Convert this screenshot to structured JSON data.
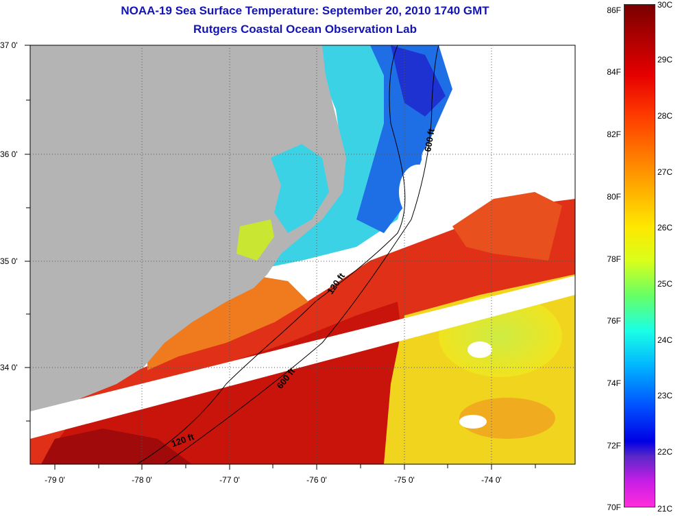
{
  "header": {
    "title": "NOAA-19 Sea Surface Temperature:  September 20, 2010 1740 GMT",
    "subtitle": "Rutgers Coastal Ocean Observation Lab"
  },
  "map": {
    "lat_labels": [
      "37 0'",
      "36 0'",
      "35 0'",
      "34 0'"
    ],
    "lon_labels": [
      "-79 0'",
      "-78 0'",
      "-77 0'",
      "-76 0'",
      "-75 0'",
      "-74 0'"
    ],
    "contours": [
      "120 ft",
      "600 ft",
      "120 ft",
      "600 ft"
    ]
  },
  "colorbar": {
    "fahrenheit": [
      "86F",
      "84F",
      "82F",
      "80F",
      "78F",
      "76F",
      "74F",
      "72F",
      "70F"
    ],
    "celsius": [
      "30C",
      "29C",
      "28C",
      "27C",
      "26C",
      "25C",
      "24C",
      "23C",
      "22C",
      "21C"
    ]
  },
  "colors": {
    "land": "#b4b4b4",
    "cloud": "#ffffff",
    "title": "#1414b4"
  }
}
